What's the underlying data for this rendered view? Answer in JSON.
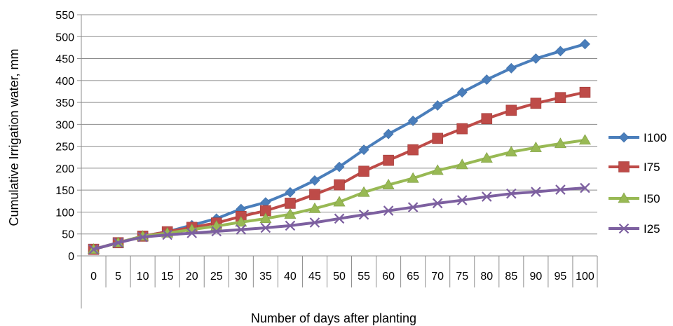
{
  "chart_data": {
    "type": "line",
    "title": "",
    "xlabel": "Number of days after planting",
    "ylabel": "Cumulative Irrigation water, mm",
    "categories": [
      "0",
      "5",
      "10",
      "15",
      "20",
      "25",
      "30",
      "35",
      "40",
      "45",
      "50",
      "55",
      "60",
      "65",
      "70",
      "75",
      "80",
      "85",
      "90",
      "95",
      "100"
    ],
    "y_ticks": [
      "0",
      "50",
      "100",
      "150",
      "200",
      "250",
      "300",
      "350",
      "400",
      "450",
      "500",
      "550"
    ],
    "ylim": [
      0,
      550
    ],
    "grid": "horizontal",
    "legend_position": "right",
    "series": [
      {
        "name": "I100",
        "marker": "diamond",
        "color": "#4a7ebb",
        "values": [
          15,
          30,
          45,
          55,
          70,
          85,
          107,
          122,
          145,
          172,
          203,
          242,
          278,
          308,
          343,
          373,
          402,
          428,
          450,
          467,
          483
        ]
      },
      {
        "name": "I75",
        "marker": "square",
        "color": "#be4b48",
        "values": [
          15,
          30,
          45,
          55,
          65,
          75,
          90,
          103,
          120,
          140,
          162,
          193,
          218,
          242,
          268,
          290,
          313,
          332,
          348,
          361,
          373
        ]
      },
      {
        "name": "I50",
        "marker": "triangle",
        "color": "#98b954",
        "values": [
          15,
          30,
          45,
          52,
          60,
          68,
          77,
          85,
          95,
          108,
          123,
          145,
          162,
          177,
          195,
          208,
          223,
          237,
          247,
          256,
          264
        ]
      },
      {
        "name": "I25",
        "marker": "x",
        "color": "#7d60a0",
        "values": [
          15,
          30,
          43,
          48,
          52,
          56,
          60,
          64,
          69,
          76,
          85,
          94,
          103,
          111,
          120,
          127,
          135,
          142,
          146,
          151,
          155
        ]
      }
    ]
  }
}
